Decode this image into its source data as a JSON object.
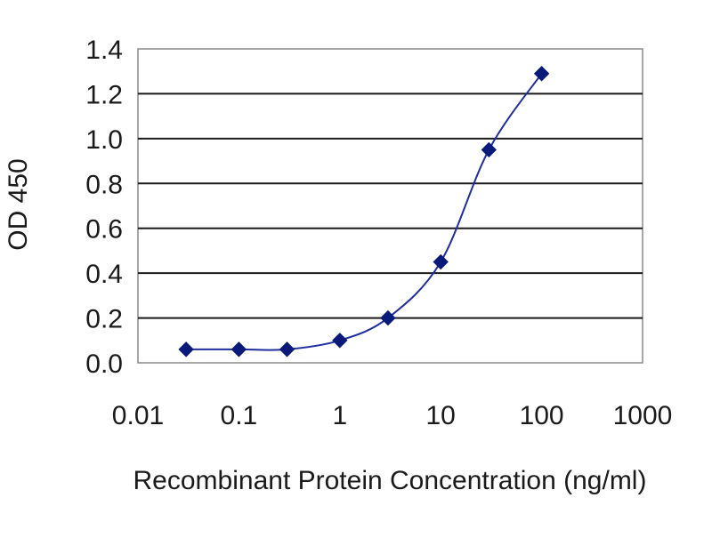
{
  "chart_data": {
    "type": "line",
    "title": "",
    "xlabel": "Recombinant Protein Concentration (ng/ml)",
    "ylabel": "OD 450",
    "x_scale": "log",
    "xlim": [
      0.01,
      1000
    ],
    "ylim": [
      0,
      1.4
    ],
    "x_ticks": [
      "0.01",
      "0.1",
      "1",
      "10",
      "100",
      "1000"
    ],
    "y_ticks": [
      "0.0",
      "0.2",
      "0.4",
      "0.6",
      "0.8",
      "1.0",
      "1.2",
      "1.4"
    ],
    "grid": "horizontal",
    "legend": "none",
    "series": [
      {
        "color": "#0a1a7a",
        "marker": "diamond",
        "x": [
          0.03,
          0.1,
          0.3,
          1,
          3,
          10,
          30,
          100
        ],
        "y": [
          0.06,
          0.06,
          0.06,
          0.1,
          0.2,
          0.45,
          0.95,
          1.29
        ]
      }
    ]
  }
}
